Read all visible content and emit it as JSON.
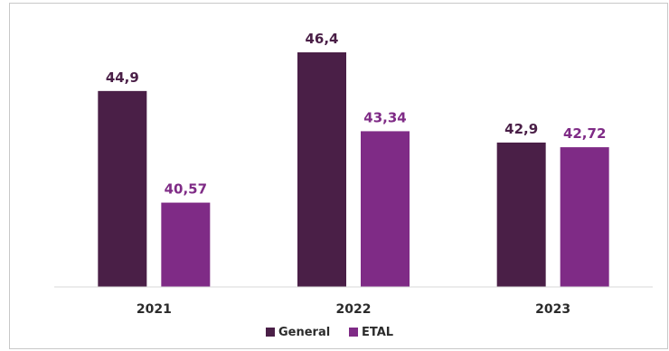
{
  "chart_data": {
    "type": "bar",
    "categories": [
      "2021",
      "2022",
      "2023"
    ],
    "series": [
      {
        "name": "General",
        "values": [
          44.9,
          46.4,
          42.9
        ],
        "value_labels": [
          "44,9",
          "46,4",
          "42,9"
        ],
        "color": "#4a1f47"
      },
      {
        "name": "ETAL",
        "values": [
          40.57,
          43.34,
          42.72
        ],
        "value_labels": [
          "40,57",
          "43,34",
          "42,72"
        ],
        "color": "#7f2b86"
      }
    ],
    "ylim": [
      37.3,
      47.1
    ],
    "legend_position": "bottom",
    "grid": false,
    "label_colors": {
      "General": "#4a1f47",
      "ETAL": "#7f2b86"
    }
  }
}
